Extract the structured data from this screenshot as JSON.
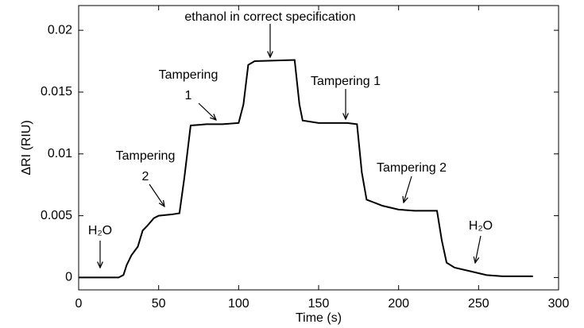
{
  "chart_data": {
    "type": "line",
    "xlabel": "Time (s)",
    "ylabel": "ΔRI (RIU)",
    "xlim": [
      0,
      300
    ],
    "ylim": [
      -0.001,
      0.022
    ],
    "xticks": [
      0,
      50,
      100,
      150,
      200,
      250,
      300
    ],
    "yticks": [
      0,
      0.005,
      0.01,
      0.015,
      0.02
    ],
    "series": [
      {
        "color": "#000000",
        "x": [
          0,
          25,
          28,
          30,
          33,
          37,
          40,
          43,
          47,
          50,
          58,
          63,
          66,
          70,
          80,
          90,
          100,
          103,
          106,
          110,
          135,
          138,
          140,
          150,
          168,
          174,
          177,
          180,
          190,
          200,
          210,
          224,
          227,
          230,
          235,
          245,
          255,
          265,
          284
        ],
        "values": [
          0,
          0,
          0.0002,
          0.001,
          0.0018,
          0.0025,
          0.0038,
          0.0042,
          0.0048,
          0.005,
          0.0051,
          0.0052,
          0.008,
          0.0123,
          0.0124,
          0.0124,
          0.0125,
          0.014,
          0.0172,
          0.0175,
          0.0176,
          0.014,
          0.0127,
          0.0125,
          0.0125,
          0.0124,
          0.0085,
          0.0063,
          0.0058,
          0.0055,
          0.0054,
          0.0054,
          0.003,
          0.0012,
          0.0008,
          0.0005,
          0.0002,
          0.0001,
          0.0001
        ]
      }
    ],
    "annotations": [
      {
        "text": [
          "ethanol in correct specification"
        ]
      },
      {
        "text": [
          "Tampering",
          "1"
        ]
      },
      {
        "text": [
          "Tampering 1"
        ]
      },
      {
        "text": [
          "Tampering",
          "2"
        ]
      },
      {
        "text": [
          "Tampering 2"
        ]
      },
      {
        "text": [
          "H₂O"
        ]
      },
      {
        "text": [
          "H₂O"
        ]
      }
    ]
  }
}
